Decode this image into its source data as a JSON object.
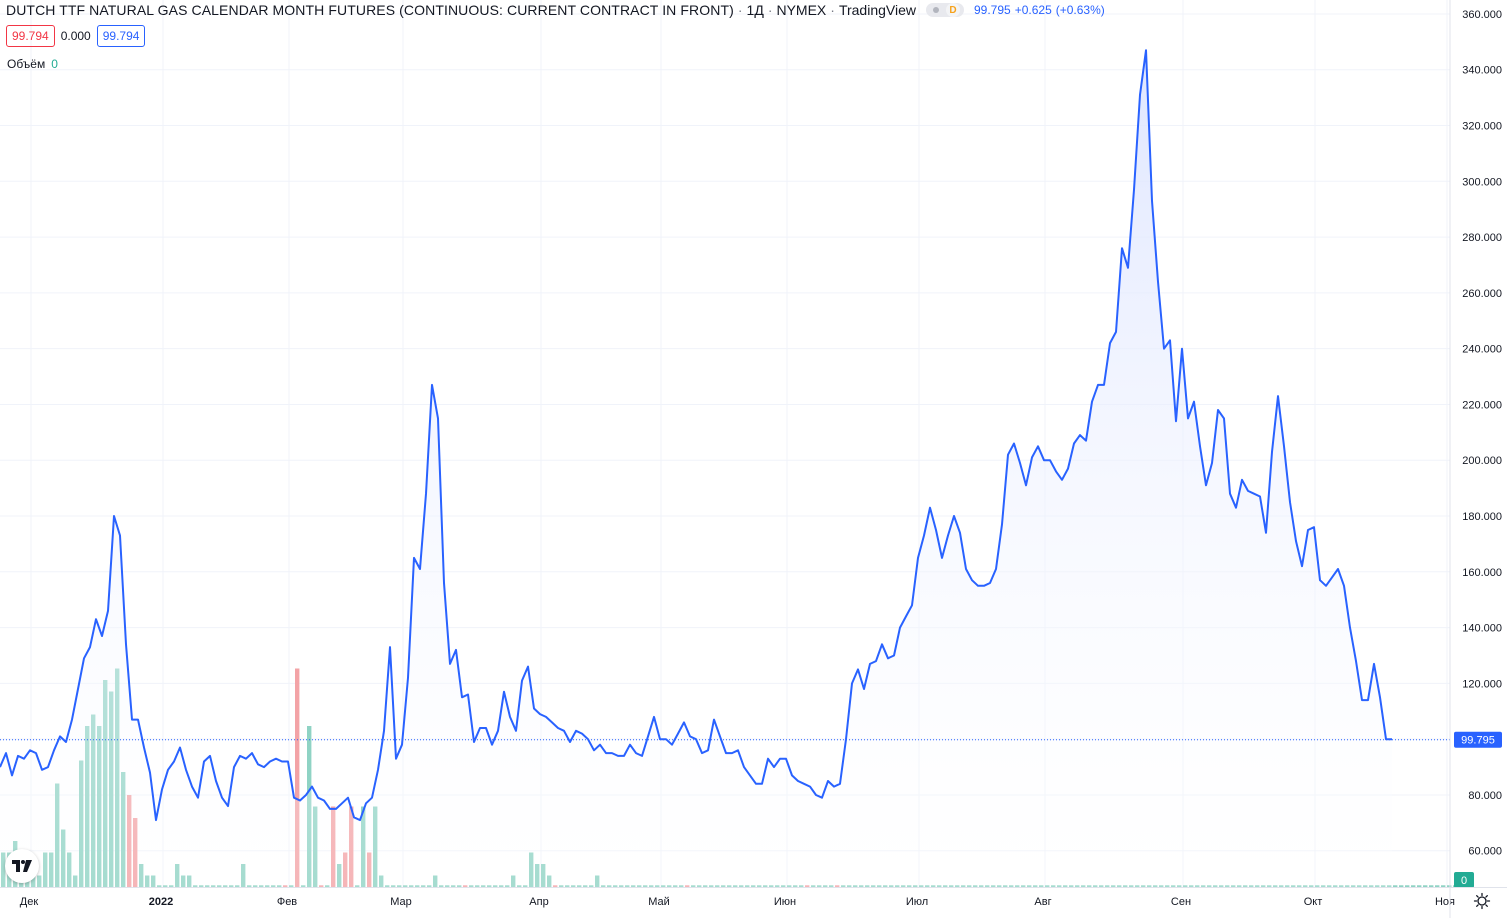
{
  "header": {
    "symbol_title": "DUTCH TTF NATURAL GAS CALENDAR MONTH FUTURES (CONTINUOUS: CURRENT CONTRACT IN FRONT)",
    "interval": "1Д",
    "exchange": "NYMEX",
    "provider": "TradingView",
    "badge_letter": "D",
    "last_price": "99.795",
    "change": "+0.625",
    "change_pct": "(+0.63%)"
  },
  "price_boxes": {
    "bid": "99.794",
    "spread": "0.000",
    "ask": "99.794"
  },
  "volume_legend": {
    "label": "Объём",
    "value": "0"
  },
  "price_label": "99.795",
  "volume_label": "0",
  "colors": {
    "line": "#2962ff",
    "fill_top": "#dbe3ff",
    "vol_up": "#8fd3c4",
    "vol_down": "#f3a3a6",
    "grid": "#f0f3fa",
    "text": "#131722"
  },
  "icons": {
    "logo": "tradingview-logo-icon",
    "settings": "gear-icon"
  },
  "chart_data": {
    "type": "area",
    "grid": true,
    "ylim": [
      47,
      365
    ],
    "y_ticks": [
      60,
      80,
      100,
      120,
      140,
      160,
      180,
      200,
      220,
      240,
      260,
      280,
      300,
      320,
      340,
      360
    ],
    "y_tick_labels": [
      "60.000",
      "80.000",
      "100.000",
      "120.000",
      "140.000",
      "160.000",
      "180.000",
      "200.000",
      "220.000",
      "240.000",
      "260.000",
      "280.000",
      "300.000",
      "320.000",
      "340.000",
      "360.000"
    ],
    "x_ticks": [
      {
        "label": "Дек",
        "pos": 4
      },
      {
        "label": "2022",
        "pos": 26
      },
      {
        "label": "Фев",
        "pos": 47
      },
      {
        "label": "Мар",
        "pos": 66
      },
      {
        "label": "Апр",
        "pos": 89
      },
      {
        "label": "Май",
        "pos": 109
      },
      {
        "label": "Июн",
        "pos": 130
      },
      {
        "label": "Июл",
        "pos": 152
      },
      {
        "label": "Авг",
        "pos": 173
      },
      {
        "label": "Сен",
        "pos": 196
      },
      {
        "label": "Окт",
        "pos": 218
      },
      {
        "label": "Ноя",
        "pos": 240
      }
    ],
    "x_count": 232,
    "series": [
      {
        "values": [
          90,
          95,
          87,
          94,
          93,
          96,
          95,
          89,
          90,
          96,
          101,
          99,
          107,
          118,
          129,
          133,
          143,
          137,
          146,
          180,
          173,
          134,
          107,
          107,
          97,
          88,
          71,
          82,
          89,
          92,
          97,
          89,
          83,
          79,
          92,
          94,
          85,
          79,
          76,
          90,
          94,
          93,
          95,
          91,
          90,
          92,
          93,
          92,
          92,
          79,
          78,
          80,
          83,
          79,
          78,
          75,
          75,
          77,
          79,
          72,
          71,
          77,
          79,
          89,
          103,
          133,
          93,
          98,
          122,
          165,
          161,
          188,
          227,
          215,
          156,
          127,
          132,
          115,
          116,
          99,
          104,
          104,
          98,
          103,
          117,
          108,
          103,
          121,
          126,
          111,
          109,
          108,
          106,
          104,
          103,
          99,
          103,
          102,
          100,
          96,
          98,
          95,
          95,
          94,
          94,
          98,
          95,
          94,
          101,
          108,
          100,
          100,
          98,
          102,
          106,
          101,
          100,
          95,
          96,
          107,
          101,
          95,
          95,
          96,
          90,
          87,
          84,
          84,
          93,
          90,
          93,
          93,
          87,
          85,
          84,
          83,
          80,
          79,
          85,
          83,
          84,
          100,
          120,
          125,
          118,
          127,
          128,
          134,
          129,
          130,
          140,
          144,
          148,
          165,
          173,
          183,
          175,
          165,
          173,
          180,
          174,
          161,
          157,
          155,
          155,
          156,
          161,
          177,
          202,
          206,
          199,
          191,
          201,
          205,
          200,
          200,
          196,
          193,
          197,
          206,
          209,
          207,
          221,
          227,
          227,
          242,
          246,
          276,
          269,
          297,
          331,
          347,
          293,
          264,
          240,
          243,
          214,
          240,
          215,
          221,
          205,
          191,
          199,
          218,
          215,
          188,
          183,
          193,
          189,
          188,
          187,
          174,
          203,
          223,
          205,
          185,
          171,
          162,
          175,
          176,
          157,
          155,
          158,
          161,
          155,
          140,
          128,
          114,
          114,
          127,
          115,
          100,
          100
        ]
      }
    ],
    "volume": {
      "values": [
        3,
        3,
        4,
        3,
        1,
        2,
        1,
        3,
        3,
        9,
        5,
        3,
        1,
        11,
        14,
        15,
        14,
        18,
        17,
        19,
        10,
        8,
        6,
        2,
        1,
        1,
        0,
        0,
        0,
        2,
        1,
        1,
        0,
        0,
        0,
        0,
        0,
        0,
        0,
        0,
        2,
        0,
        0,
        0,
        0,
        0,
        0,
        0,
        0,
        19,
        0,
        14,
        7,
        0,
        0,
        7,
        2,
        3,
        7,
        0,
        7,
        3,
        7,
        1,
        0,
        0,
        0,
        0,
        0,
        0,
        0,
        0,
        1,
        0,
        0,
        0,
        0,
        0,
        0,
        0,
        0,
        0,
        0,
        0,
        0,
        1,
        0,
        0,
        3,
        2,
        2,
        1,
        0,
        0,
        0,
        0,
        0,
        0,
        0,
        1,
        0,
        0,
        0,
        0,
        0,
        0,
        0,
        0,
        0,
        0,
        0,
        0,
        0,
        0,
        0,
        0,
        0,
        0,
        0,
        0,
        0,
        0,
        0,
        0,
        0,
        0,
        0,
        0,
        0,
        0,
        0,
        0,
        0,
        0,
        0,
        0,
        0,
        0,
        0,
        0,
        0,
        0,
        0,
        0,
        0,
        0,
        0,
        0,
        0,
        0,
        0,
        0,
        0,
        0,
        0,
        0,
        0,
        0,
        0,
        0,
        0,
        0,
        0,
        0,
        0,
        0,
        0,
        0,
        0,
        0,
        0,
        0,
        0,
        0,
        0,
        0,
        0,
        0,
        0,
        0,
        0,
        0,
        0,
        0,
        0,
        0,
        0,
        0,
        0,
        0,
        0,
        0,
        0,
        0,
        0,
        0,
        0,
        0,
        0,
        0,
        0,
        0,
        0,
        0,
        0,
        0,
        0,
        0,
        0,
        0,
        0,
        0,
        0,
        0,
        0,
        0,
        0,
        0,
        0,
        0,
        0,
        0,
        0,
        0,
        0,
        0,
        0,
        0,
        0,
        0,
        0,
        0,
        0,
        0,
        0,
        0,
        0,
        0,
        0,
        0,
        0,
        0,
        0,
        0
      ],
      "down_indices": [
        21,
        22,
        47,
        49,
        53,
        55,
        57,
        58,
        61,
        77,
        92,
        114,
        134,
        139
      ]
    }
  }
}
